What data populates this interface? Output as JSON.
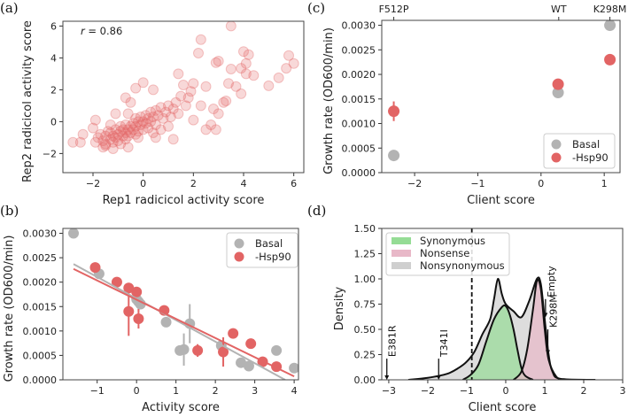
{
  "colors": {
    "basal": "#b3b3b3",
    "hsp90": "#e26464",
    "scatter": "#e26464",
    "synonymous": "#95dc95",
    "nonsense": "#e8b8c8",
    "nonsynonymous": "#cfcfcf"
  },
  "chart_data": [
    {
      "panel_label": "(a)",
      "type": "scatter",
      "xlabel": "Rep1 radicicol activity score",
      "ylabel": "Rep2 radicicol activity score",
      "annotation": "r = 0.86",
      "annotation_var": "r",
      "annotation_rest": " = 0.86",
      "xlim": [
        -3.2,
        6.4
      ],
      "ylim": [
        -3.2,
        6.3
      ],
      "xticks": [
        -2,
        0,
        2,
        4,
        6
      ],
      "xtick_labels": [
        "−2",
        "0",
        "2",
        "4",
        "6"
      ],
      "yticks": [
        -2,
        0,
        2,
        4,
        6
      ],
      "ytick_labels": [
        "−2",
        "0",
        "2",
        "4",
        "6"
      ],
      "points": [
        [
          3.5,
          6.0
        ],
        [
          2.3,
          5.15
        ],
        [
          2.2,
          4.3
        ],
        [
          4.0,
          4.4
        ],
        [
          4.2,
          4.2
        ],
        [
          5.8,
          4.15
        ],
        [
          6.0,
          3.65
        ],
        [
          5.7,
          3.35
        ],
        [
          5.4,
          2.75
        ],
        [
          5.0,
          2.25
        ],
        [
          4.1,
          3.65
        ],
        [
          2.9,
          3.7
        ],
        [
          3.0,
          3.8
        ],
        [
          3.5,
          3.3
        ],
        [
          3.9,
          3.35
        ],
        [
          4.1,
          3.0
        ],
        [
          4.4,
          2.9
        ],
        [
          3.9,
          1.75
        ],
        [
          3.4,
          2.4
        ],
        [
          3.7,
          2.2
        ],
        [
          3.3,
          1.3
        ],
        [
          2.8,
          0.8
        ],
        [
          3.0,
          0.5
        ],
        [
          2.5,
          -0.5
        ],
        [
          2.7,
          -0.2
        ],
        [
          2.9,
          -0.5
        ],
        [
          3.2,
          1.2
        ],
        [
          2.5,
          2.2
        ],
        [
          1.4,
          3.0
        ],
        [
          0.4,
          2.0
        ],
        [
          -0.3,
          2.1
        ],
        [
          -0.7,
          1.5
        ],
        [
          -0.5,
          1.2
        ],
        [
          0.0,
          2.45
        ],
        [
          -1.9,
          0.1
        ],
        [
          -2.4,
          -0.8
        ],
        [
          -2.5,
          -1.3
        ],
        [
          -2.8,
          -1.3
        ],
        [
          -2.0,
          -0.4
        ],
        [
          -1.1,
          0.5
        ],
        [
          2.0,
          2.4
        ],
        [
          1.6,
          2.3
        ],
        [
          1.8,
          1.5
        ],
        [
          2.3,
          1.0
        ],
        [
          2.0,
          0.1
        ],
        [
          1.2,
          -1.1
        ],
        [
          0.5,
          -1.0
        ],
        [
          -0.6,
          -1.6
        ],
        [
          -1.2,
          -1.7
        ],
        [
          -1.5,
          -1.4
        ],
        [
          -1.8,
          -1.0
        ],
        [
          -1.7,
          -0.8
        ],
        [
          -1.6,
          -1.2
        ],
        [
          -1.5,
          -0.9
        ],
        [
          -1.4,
          -0.6
        ],
        [
          -1.3,
          -1.1
        ],
        [
          -1.3,
          -0.7
        ],
        [
          -1.2,
          -0.9
        ],
        [
          -1.2,
          -1.3
        ],
        [
          -1.1,
          -0.5
        ],
        [
          -1.1,
          -1.0
        ],
        [
          -1.0,
          -0.8
        ],
        [
          -1.0,
          -1.2
        ],
        [
          -0.9,
          -0.6
        ],
        [
          -0.9,
          -0.3
        ],
        [
          -0.8,
          -0.9
        ],
        [
          -0.8,
          -0.5
        ],
        [
          -0.7,
          -0.7
        ],
        [
          -0.7,
          -1.1
        ],
        [
          -0.7,
          -0.2
        ],
        [
          -0.6,
          -0.5
        ],
        [
          -0.6,
          -0.9
        ],
        [
          -0.5,
          -0.3
        ],
        [
          -0.5,
          -0.7
        ],
        [
          -0.4,
          -0.1
        ],
        [
          -0.4,
          -0.5
        ],
        [
          -0.3,
          -0.8
        ],
        [
          -0.3,
          0.2
        ],
        [
          -0.3,
          -0.3
        ],
        [
          -0.2,
          0.0
        ],
        [
          -0.2,
          -0.6
        ],
        [
          -0.1,
          0.3
        ],
        [
          -0.1,
          -0.2
        ],
        [
          0.0,
          0.0
        ],
        [
          0.0,
          -0.5
        ],
        [
          0.1,
          0.4
        ],
        [
          0.1,
          -0.1
        ],
        [
          0.2,
          0.2
        ],
        [
          0.2,
          -0.4
        ],
        [
          0.3,
          0.6
        ],
        [
          0.3,
          0.0
        ],
        [
          0.4,
          0.3
        ],
        [
          0.5,
          0.7
        ],
        [
          0.5,
          -0.2
        ],
        [
          0.6,
          0.4
        ],
        [
          0.7,
          0.9
        ],
        [
          0.8,
          0.2
        ],
        [
          0.9,
          0.6
        ],
        [
          1.0,
          1.0
        ],
        [
          1.1,
          0.3
        ],
        [
          1.2,
          0.8
        ],
        [
          1.3,
          1.2
        ],
        [
          1.4,
          0.5
        ],
        [
          1.5,
          1.6
        ],
        [
          1.7,
          1.0
        ],
        [
          1.9,
          1.9
        ],
        [
          -1.5,
          -1.5
        ],
        [
          -0.9,
          -1.4
        ],
        [
          -0.2,
          -1.0
        ],
        [
          0.4,
          -0.7
        ],
        [
          -0.6,
          0.5
        ],
        [
          -1.3,
          -0.2
        ],
        [
          0.7,
          -0.5
        ],
        [
          1.0,
          -0.3
        ],
        [
          -1.9,
          -1.3
        ],
        [
          -1.6,
          -1.6
        ]
      ]
    },
    {
      "panel_label": "(b)",
      "type": "scatter",
      "xlabel": "Activity score",
      "ylabel": "Growth rate (OD600/min)",
      "xlim": [
        -1.87,
        4.11
      ],
      "ylim": [
        0,
        0.0031
      ],
      "xticks": [
        -1,
        0,
        1,
        2,
        3,
        4
      ],
      "xtick_labels": [
        "−1",
        "0",
        "1",
        "2",
        "3",
        "4"
      ],
      "yticks": [
        0,
        0.0005,
        0.001,
        0.0015,
        0.002,
        0.0025,
        0.003
      ],
      "ytick_labels": [
        "0.0000",
        "0.0005",
        "0.0010",
        "0.0015",
        "0.0020",
        "0.0025",
        "0.0030"
      ],
      "legend": {
        "position": "top-right",
        "entries": [
          "Basal",
          "-Hsp90"
        ]
      },
      "series": [
        {
          "name": "Basal",
          "points": [
            [
              -1.6,
              0.003,
              0
            ],
            [
              -0.95,
              0.00217,
              0
            ],
            [
              0.0,
              0.00165,
              0.0001
            ],
            [
              0.05,
              0.0016,
              0.0002
            ],
            [
              0.1,
              0.00155,
              0
            ],
            [
              0.75,
              0.00118,
              0
            ],
            [
              1.1,
              0.0006,
              0
            ],
            [
              1.2,
              0.00062,
              0.00033
            ],
            [
              1.35,
              0.00115,
              0.0004
            ],
            [
              2.15,
              0.0007,
              0
            ],
            [
              2.65,
              0.00035,
              0
            ],
            [
              2.85,
              0.00028,
              0
            ],
            [
              3.55,
              0.0006,
              0
            ],
            [
              4.0,
              0.00024,
              0
            ]
          ],
          "fit": [
            [
              -1.6,
              0.00237
            ],
            [
              3.77,
              0
            ]
          ]
        },
        {
          "name": "-Hsp90",
          "points": [
            [
              -1.05,
              0.0023,
              0
            ],
            [
              -0.5,
              0.002,
              0
            ],
            [
              -0.2,
              0.00188,
              0
            ],
            [
              -0.2,
              0.0014,
              0.0005
            ],
            [
              0.0,
              0.0018,
              0.0001
            ],
            [
              0.05,
              0.00125,
              0.0002
            ],
            [
              0.7,
              0.00142,
              0
            ],
            [
              1.55,
              0.0006,
              0.00013
            ],
            [
              2.2,
              0.00057,
              0.0003
            ],
            [
              2.45,
              0.00095,
              0
            ],
            [
              2.9,
              0.00074,
              0
            ],
            [
              3.2,
              0.00037,
              0
            ],
            [
              3.55,
              0.00027,
              0
            ]
          ],
          "fit": [
            [
              -1.6,
              0.00227
            ],
            [
              4.0,
              7e-05
            ]
          ]
        }
      ]
    },
    {
      "panel_label": "(c)",
      "type": "scatter",
      "xlabel": "Client score",
      "ylabel": "Growth rate (OD600/min)",
      "xlim": [
        -2.52,
        1.25
      ],
      "ylim": [
        0,
        0.0031
      ],
      "xticks": [
        -2,
        -1,
        0,
        1
      ],
      "xtick_labels": [
        "−2",
        "−1",
        "0",
        "1"
      ],
      "yticks": [
        0,
        0.0005,
        0.001,
        0.0015,
        0.002,
        0.0025,
        0.003
      ],
      "ytick_labels": [
        "0.0000",
        "0.0005",
        "0.0010",
        "0.0015",
        "0.0020",
        "0.0025",
        "0.0030"
      ],
      "top_ticks": [
        -2.33,
        0.28,
        1.09
      ],
      "top_tick_labels": [
        "F512P",
        "WT",
        "K298M"
      ],
      "legend": {
        "position": "bottom-right",
        "entries": [
          "Basal",
          "-Hsp90"
        ]
      },
      "series": [
        {
          "name": "Basal",
          "points": [
            [
              -2.33,
              0.00035,
              5e-05
            ],
            [
              0.27,
              0.00163,
              0
            ],
            [
              1.09,
              0.003,
              0
            ]
          ]
        },
        {
          "name": "-Hsp90",
          "points": [
            [
              -2.33,
              0.00125,
              0.0002
            ],
            [
              0.27,
              0.0018,
              0.0001
            ],
            [
              1.09,
              0.0023,
              0
            ]
          ]
        }
      ]
    },
    {
      "panel_label": "(d)",
      "type": "area",
      "xlabel": "Client score",
      "ylabel": "Density",
      "xlim": [
        -3.18,
        3.0
      ],
      "ylim": [
        0,
        1.5
      ],
      "xticks": [
        -3,
        -2,
        -1,
        0,
        1,
        2,
        3
      ],
      "xtick_labels": [
        "−3",
        "−2",
        "−1",
        "0",
        "1",
        "2",
        "3"
      ],
      "yticks": [
        0,
        0.25,
        0.5,
        0.75,
        1.0,
        1.25,
        1.5
      ],
      "ytick_labels": [
        "0.00",
        "0.25",
        "0.50",
        "0.75",
        "1.00",
        "1.25",
        "1.50"
      ],
      "legend": {
        "position": "top-left",
        "entries": [
          "Synonymous",
          "Nonsense",
          "Nonsynonymous"
        ]
      },
      "threshold": -0.87,
      "series": [
        {
          "name": "Nonsynonymous",
          "x": [
            -2.5,
            -2.0,
            -1.5,
            -1.2,
            -1.0,
            -0.8,
            -0.6,
            -0.4,
            -0.3,
            -0.2,
            -0.1,
            0.0,
            0.2,
            0.4,
            0.6,
            0.8,
            0.9,
            1.0,
            1.1,
            1.2,
            1.4,
            2.3
          ],
          "y": [
            0,
            0.02,
            0.06,
            0.12,
            0.18,
            0.28,
            0.45,
            0.6,
            0.8,
            1.0,
            0.85,
            0.75,
            0.68,
            0.62,
            0.78,
            1.0,
            0.95,
            0.6,
            0.25,
            0.08,
            0.01,
            0
          ]
        },
        {
          "name": "Synonymous",
          "x": [
            -1.1,
            -0.9,
            -0.7,
            -0.5,
            -0.3,
            -0.1,
            0.0,
            0.1,
            0.2,
            0.3,
            0.4,
            0.5,
            0.7
          ],
          "y": [
            0,
            0.05,
            0.15,
            0.38,
            0.6,
            0.72,
            0.73,
            0.65,
            0.5,
            0.3,
            0.12,
            0.04,
            0
          ]
        },
        {
          "name": "Nonsense",
          "x": [
            0.2,
            0.4,
            0.55,
            0.7,
            0.8,
            0.9,
            1.0,
            1.1,
            1.3,
            1.5
          ],
          "y": [
            0,
            0.08,
            0.3,
            0.7,
            0.98,
            0.9,
            0.5,
            0.2,
            0.03,
            0
          ]
        }
      ],
      "annotations": [
        {
          "label": "E381R",
          "x": -3.05,
          "from": 0.21,
          "to": 0.0
        },
        {
          "label": "T341I",
          "x": -1.72,
          "from": 0.21,
          "to": 0.0
        },
        {
          "label": "K298M",
          "x": 1.08,
          "from": 0.5,
          "to": 0.25
        },
        {
          "label": "Empty",
          "x": 1.02,
          "from": 0.8,
          "to": 0.62
        }
      ]
    }
  ]
}
